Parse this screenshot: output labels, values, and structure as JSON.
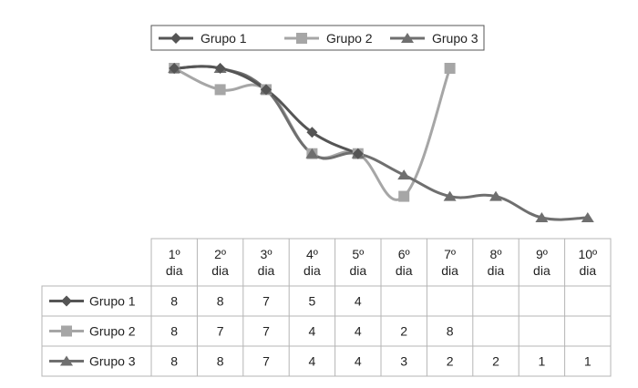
{
  "chart_data": {
    "type": "line",
    "title": "",
    "xlabel": "",
    "ylabel": "",
    "ylim": [
      1,
      8
    ],
    "grid": false,
    "legend_position": "top",
    "categories": [
      [
        "1º",
        "dia"
      ],
      [
        "2º",
        "dia"
      ],
      [
        "3º",
        "dia"
      ],
      [
        "4º",
        "dia"
      ],
      [
        "5º",
        "dia"
      ],
      [
        "6º",
        "dia"
      ],
      [
        "7º",
        "dia"
      ],
      [
        "8º",
        "dia"
      ],
      [
        "9º",
        "dia"
      ],
      [
        "10º",
        "dia"
      ]
    ],
    "series": [
      {
        "name": "Grupo 1",
        "marker": "diamond",
        "color": "#555555",
        "values": [
          8,
          8,
          7,
          5,
          4,
          null,
          null,
          null,
          null,
          null
        ]
      },
      {
        "name": "Grupo 2",
        "marker": "square",
        "color": "#a6a6a6",
        "values": [
          8,
          7,
          7,
          4,
          4,
          2,
          8,
          null,
          null,
          null
        ]
      },
      {
        "name": "Grupo 3",
        "marker": "triangle",
        "color": "#6f6f6f",
        "values": [
          8,
          8,
          7,
          4,
          4,
          3,
          2,
          2,
          1,
          1
        ]
      }
    ]
  }
}
